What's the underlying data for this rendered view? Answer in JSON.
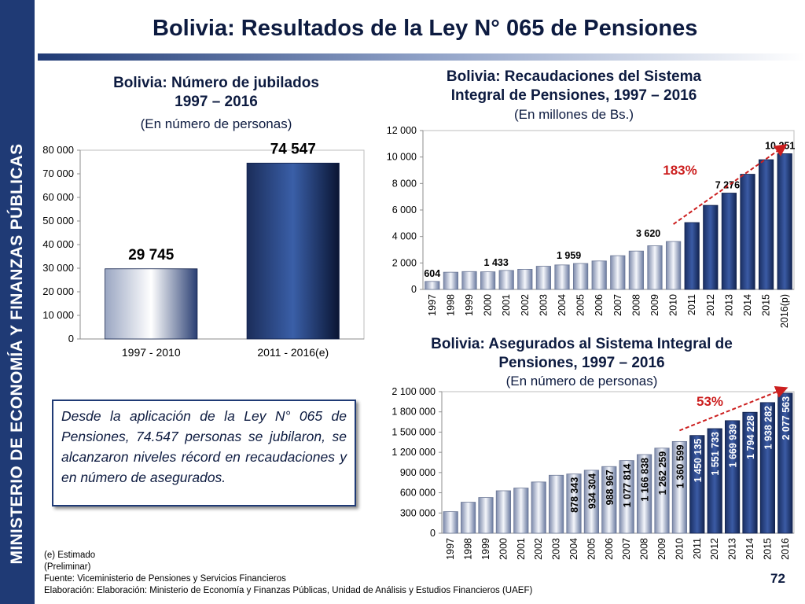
{
  "sidebar_text": "MINISTERIO DE ECONOMÍA Y FINANZAS PÚBLICAS",
  "page_title": "Bolivia: Resultados de la Ley N° 065 de Pensiones",
  "highlight_text": "Desde la aplicación de la Ley N° 065 de Pensiones, 74.547 personas se jubilaron, se alcanzaron niveles récord en recaudaciones y en número de asegurados.",
  "footnotes": {
    "estimado": "(e) Estimado",
    "preliminar": "(Preliminar)",
    "fuente": "Fuente: Viceministerio de Pensiones y Servicios Financieros",
    "elaboracion": "Elaboración: Elaboración: Ministerio de Economía y Finanzas Públicas, Unidad de Análisis y Estudios Financieros (UAEF)"
  },
  "page_number": "72",
  "colors": {
    "navy": "#1f3a75",
    "dark_navy": "#0d1b40",
    "bar_light": "#c9cfde",
    "bar_dark": "#1f3a75",
    "arrow_red": "#cc1f1f"
  },
  "chart_data": [
    {
      "type": "bar",
      "title_line1": "Bolivia: Número de jubilados",
      "title_line2": "1997 – 2016",
      "subtitle": "(En número de personas)",
      "categories": [
        "1997 - 2010",
        "2011 - 2016(e)"
      ],
      "values": [
        29745,
        74547
      ],
      "value_labels": [
        "29 745",
        "74 547"
      ],
      "y_ticks": [
        "0",
        "10 000",
        "20 000",
        "30 000",
        "40 000",
        "50 000",
        "60 000",
        "70 000",
        "80 000"
      ],
      "ylim": [
        0,
        80000
      ],
      "grid": false
    },
    {
      "type": "bar",
      "title_line1": "Bolivia: Recaudaciones del Sistema",
      "title_line2": "Integral de Pensiones, 1997 – 2016",
      "subtitle": "(En millones de Bs.)",
      "categories": [
        "1997",
        "1998",
        "1999",
        "2000",
        "2001",
        "2002",
        "2003",
        "2004",
        "2005",
        "2006",
        "2007",
        "2008",
        "2009",
        "2010",
        "2011",
        "2012",
        "2013",
        "2014",
        "2015",
        "2016(p)"
      ],
      "values": [
        604,
        1300,
        1350,
        1330,
        1433,
        1520,
        1750,
        1850,
        1959,
        2150,
        2550,
        2900,
        3300,
        3620,
        5050,
        6350,
        7276,
        8700,
        9800,
        10251
      ],
      "value_labels": [
        "604",
        "",
        "",
        "",
        "1 433",
        "",
        "",
        "",
        "1 959",
        "",
        "",
        "",
        "",
        "3 620",
        "",
        "",
        "7 276",
        "",
        "",
        "10 251"
      ],
      "highlight_from_index": 14,
      "y_ticks": [
        "0",
        "2 000",
        "4 000",
        "6 000",
        "8 000",
        "10 000",
        "12 000"
      ],
      "ylim": [
        0,
        12000
      ],
      "growth_label": "183%",
      "grid": false
    },
    {
      "type": "bar",
      "title_line1": "Bolivia: Asegurados al Sistema Integral de",
      "title_line2": "Pensiones, 1997 – 2016",
      "subtitle": "(En número de personas)",
      "categories": [
        "1997",
        "1998",
        "1999",
        "2000",
        "2001",
        "2002",
        "2003",
        "2004",
        "2005",
        "2006",
        "2007",
        "2008",
        "2009",
        "2010",
        "2011",
        "2012",
        "2013",
        "2014",
        "2015",
        "2016"
      ],
      "values": [
        320000,
        460000,
        530000,
        630000,
        670000,
        760000,
        860000,
        878343,
        934304,
        988967,
        1077814,
        1166838,
        1262259,
        1360599,
        1450135,
        1551733,
        1669939,
        1794228,
        1938282,
        2077563
      ],
      "value_labels": [
        "",
        "",
        "",
        "",
        "",
        "",
        "",
        "878 343",
        "934 304",
        "988 967",
        "1 077 814",
        "1 166 838",
        "1 262 259",
        "1 360 599",
        "1 450 135",
        "1 551 733",
        "1 669 939",
        "1 794 228",
        "1 938 282",
        "2 077 563"
      ],
      "highlight_from_index": 14,
      "y_ticks": [
        "0",
        "300 000",
        "600 000",
        "900 000",
        "1 200 000",
        "1 500 000",
        "1 800 000",
        "2 100 000"
      ],
      "ylim": [
        0,
        2100000
      ],
      "growth_label": "53%",
      "grid": false
    }
  ]
}
